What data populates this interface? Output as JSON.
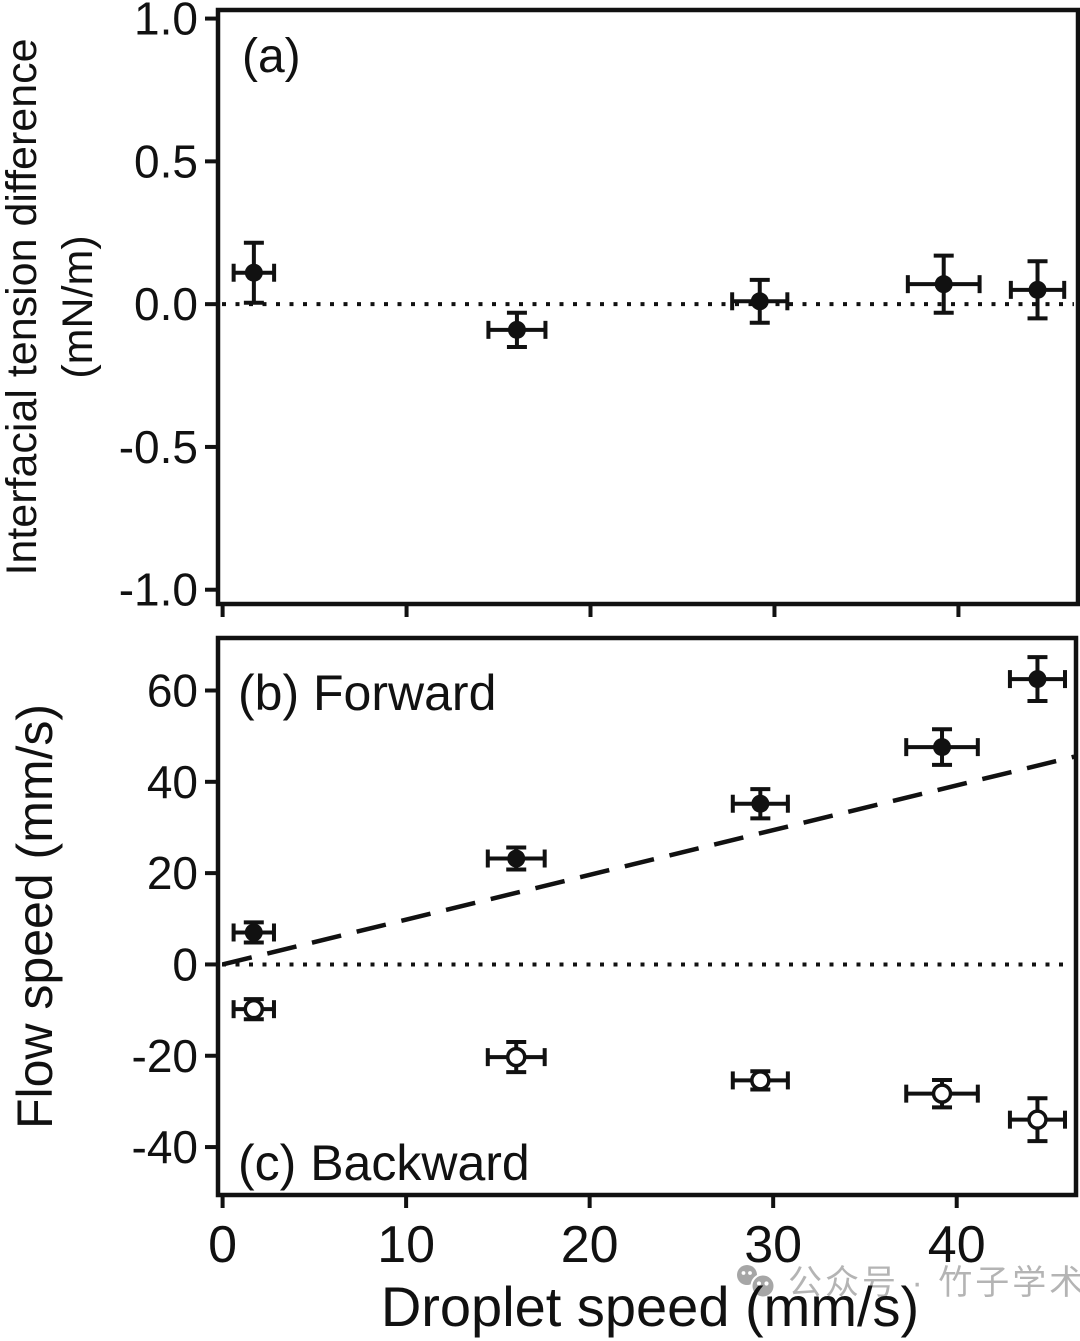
{
  "figure": {
    "background": "#ffffff",
    "ink": "#111111",
    "watermark": {
      "text": "公众号 · 竹子学术",
      "color": "#b4b4b4",
      "logo": "two-gray-chat-faces"
    }
  },
  "chart_data": [
    {
      "id": "a",
      "type": "scatter",
      "panel_labels": [
        {
          "text": "(a)"
        }
      ],
      "xlabel": "",
      "ylabel": "Interfacial tension difference (mN/m)",
      "ylabel_lines": [
        "Interfacial tension difference",
        "(mN/m)"
      ],
      "xlim": [
        -0.25,
        46.5
      ],
      "ylim": [
        -1.05,
        1.03
      ],
      "xticks": [
        0,
        10,
        20,
        30,
        40
      ],
      "xtick_labels": [],
      "yticks": [
        1.0,
        0.5,
        0.0,
        -0.5,
        -1.0
      ],
      "ytick_labels": [
        "1.0",
        "0.5",
        "0.0",
        "-0.5",
        "-1.0"
      ],
      "grid": false,
      "legend": "none",
      "reference_lines": [
        {
          "name": "zero-line",
          "style": "dotted",
          "y": 0
        }
      ],
      "series": [
        {
          "name": "Interfacial tension difference",
          "marker": "filled-circle",
          "x": [
            1.7,
            16.0,
            29.2,
            39.2,
            44.3
          ],
          "y": [
            0.11,
            -0.09,
            0.01,
            0.07,
            0.05
          ],
          "xerr": [
            1.1,
            1.55,
            1.5,
            1.95,
            1.45
          ],
          "yerr": [
            0.105,
            0.06,
            0.075,
            0.1,
            0.1
          ]
        }
      ]
    },
    {
      "id": "b",
      "type": "scatter",
      "panel_labels": [
        {
          "text": "(b) Forward"
        },
        {
          "text": "(c) Backward"
        }
      ],
      "xlabel": "Droplet speed (mm/s)",
      "ylabel": "Flow speed (mm/s)",
      "ylabel_lines": [
        "Flow speed (mm/s)"
      ],
      "xlim": [
        -0.25,
        46.5
      ],
      "ylim": [
        -50.5,
        71.5
      ],
      "xticks": [
        0,
        10,
        20,
        30,
        40
      ],
      "xtick_labels": [
        "0",
        "10",
        "20",
        "30",
        "40"
      ],
      "yticks": [
        60,
        40,
        20,
        0,
        -20,
        -40
      ],
      "ytick_labels": [
        "60",
        "40",
        "20",
        "0",
        "-20",
        "-40"
      ],
      "grid": false,
      "legend": "none",
      "reference_lines": [
        {
          "name": "zero-line",
          "style": "dotted",
          "y": 0
        },
        {
          "name": "dashed-guide",
          "style": "dashed",
          "from": [
            0,
            0
          ],
          "to": [
            46.4,
            45.5
          ]
        }
      ],
      "series": [
        {
          "name": "Forward flow",
          "marker": "filled-circle",
          "x": [
            1.7,
            16.0,
            29.3,
            39.2,
            44.4
          ],
          "y": [
            7.0,
            23.2,
            35.2,
            47.6,
            62.5
          ],
          "xerr": [
            1.1,
            1.55,
            1.5,
            1.95,
            1.5
          ],
          "yerr": [
            2.2,
            2.4,
            3.2,
            3.9,
            4.8
          ]
        },
        {
          "name": "Backward flow",
          "marker": "open-circle",
          "x": [
            1.7,
            16.0,
            29.3,
            39.2,
            44.4
          ],
          "y": [
            -9.8,
            -20.3,
            -25.4,
            -28.3,
            -34.0
          ],
          "xerr": [
            1.1,
            1.55,
            1.5,
            1.95,
            1.5
          ],
          "yerr": [
            2.2,
            3.3,
            2.0,
            3.0,
            4.7
          ]
        }
      ]
    }
  ]
}
